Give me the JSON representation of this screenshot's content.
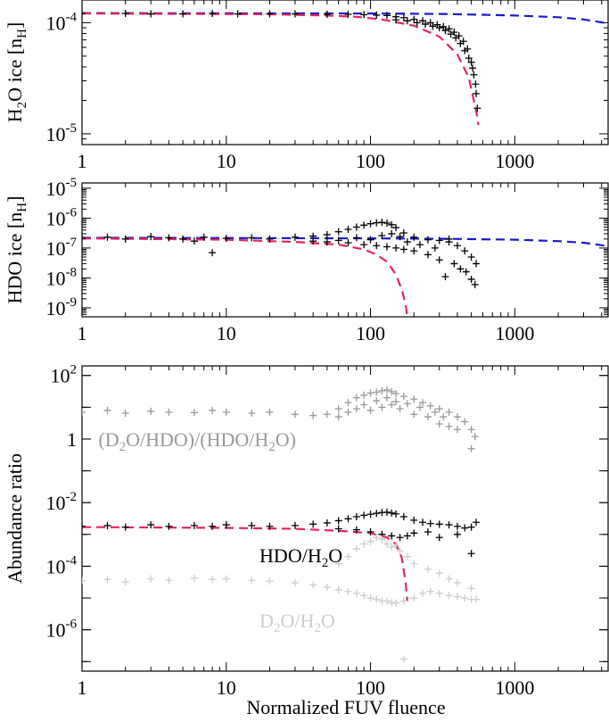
{
  "xlabel": "Normalized FUV fluence",
  "colors": {
    "model_red": "#e8245a",
    "model_blue": "#1a1ad4",
    "black": "#000000",
    "gray_dark": "#999999",
    "gray_light": "#cccccc"
  },
  "chart_data": [
    {
      "type": "scatter",
      "panel": "top",
      "ylabel": "H2O ice [nH]",
      "ylabel_parts": {
        "main": "H",
        "sub": "2",
        "rest": "O ice [n",
        "sub2": "H",
        "end": "]"
      },
      "xscale": "log",
      "yscale": "log",
      "xlim": [
        1,
        4500
      ],
      "ylim": [
        8e-06,
        0.00016
      ],
      "x_ticks": [
        {
          "v": 1,
          "l": "1"
        },
        {
          "v": 10,
          "l": "10"
        },
        {
          "v": 100,
          "l": "100"
        },
        {
          "v": 1000,
          "l": "1000"
        }
      ],
      "y_ticks": [
        {
          "v": 0.0001,
          "base": "10",
          "exp": "-4"
        },
        {
          "v": 1e-05,
          "base": "10",
          "exp": "-5"
        }
      ],
      "series": [
        {
          "kind": "model",
          "style": "dashed",
          "color": "#1a1ad4",
          "x": [
            1,
            100,
            300,
            600,
            1000,
            2000,
            3000,
            4500
          ],
          "y": [
            0.000122,
            0.000121,
            0.00012,
            0.000118,
            0.000116,
            0.000112,
            0.000107,
            9.8e-05
          ]
        },
        {
          "kind": "model",
          "style": "dashed",
          "color": "#e8245a",
          "x": [
            1,
            20,
            50,
            80,
            120,
            200,
            300,
            400,
            480,
            540,
            560
          ],
          "y": [
            0.000121,
            0.000119,
            0.000116,
            0.000113,
            0.000107,
            9.4e-05,
            7.5e-05,
            5.2e-05,
            3.2e-05,
            1.6e-05,
            1.2e-05
          ]
        },
        {
          "kind": "markers",
          "color": "#000000",
          "x": [
            1,
            2,
            3,
            5,
            8,
            12,
            20,
            30,
            50,
            70,
            90,
            110,
            130,
            150,
            170,
            200,
            230,
            260,
            290,
            320,
            350,
            380,
            410,
            440,
            470,
            500,
            520,
            540,
            550
          ],
          "y": [
            0.000121,
            0.000121,
            0.00012,
            0.00012,
            0.000121,
            0.00012,
            0.00012,
            0.00012,
            0.000119,
            0.000119,
            0.000118,
            0.000117,
            0.000116,
            0.000113,
            0.000111,
            0.000107,
            0.000104,
            0.0001,
            9.6e-05,
            9.2e-05,
            8.8e-05,
            8.2e-05,
            7.6e-05,
            6.8e-05,
            5.8e-05,
            4.4e-05,
            3.4e-05,
            2.3e-05,
            1.7e-05
          ]
        },
        {
          "kind": "markers",
          "color": "#000000",
          "x": [
            150,
            180,
            210,
            240,
            270,
            300,
            330,
            360,
            390,
            420,
            450,
            480,
            510,
            535
          ],
          "y": [
            0.000106,
            0.000104,
            0.0001,
            9.7e-05,
            9.3e-05,
            9e-05,
            8.5e-05,
            7.9e-05,
            7.3e-05,
            6.5e-05,
            5.6e-05,
            4.8e-05,
            3.9e-05,
            2.8e-05
          ]
        }
      ]
    },
    {
      "type": "scatter",
      "panel": "middle",
      "ylabel": "HDO ice [nH]",
      "ylabel_parts": {
        "main": "HDO ice [n",
        "sub": "H",
        "end": "]"
      },
      "xscale": "log",
      "yscale": "log",
      "xlim": [
        1,
        4500
      ],
      "ylim": [
        5e-10,
        1.5e-05
      ],
      "x_ticks": [
        {
          "v": 1,
          "l": "1"
        },
        {
          "v": 10,
          "l": "10"
        },
        {
          "v": 100,
          "l": "100"
        },
        {
          "v": 1000,
          "l": "1000"
        }
      ],
      "y_ticks": [
        {
          "v": 1e-05,
          "base": "10",
          "exp": "-5"
        },
        {
          "v": 1e-06,
          "base": "10",
          "exp": "-6"
        },
        {
          "v": 1e-07,
          "base": "10",
          "exp": "-7"
        },
        {
          "v": 1e-08,
          "base": "10",
          "exp": "-8"
        },
        {
          "v": 1e-09,
          "base": "10",
          "exp": "-9"
        }
      ],
      "series": [
        {
          "kind": "model",
          "style": "dashed",
          "color": "#1a1ad4",
          "x": [
            1,
            100,
            300,
            1000,
            2000,
            3000,
            4500
          ],
          "y": [
            2.2e-07,
            2.1e-07,
            2.05e-07,
            1.9e-07,
            1.7e-07,
            1.5e-07,
            1.15e-07
          ]
        },
        {
          "kind": "model",
          "style": "dashed",
          "color": "#e8245a",
          "x": [
            1,
            10,
            30,
            60,
            90,
            110,
            130,
            150,
            165,
            175,
            180
          ],
          "y": [
            2.1e-07,
            1.9e-07,
            1.6e-07,
            1.3e-07,
            9e-08,
            6e-08,
            3.5e-08,
            1.3e-08,
            4e-09,
            1.3e-09,
            5e-10
          ]
        },
        {
          "kind": "markers",
          "color": "#000000",
          "x": [
            1,
            1.5,
            2,
            3,
            4,
            5,
            7,
            10,
            15,
            20,
            30,
            40,
            50,
            60,
            70,
            80,
            90,
            100,
            110,
            120,
            130,
            140,
            150,
            170,
            200,
            250,
            300,
            350,
            400,
            450,
            500,
            540
          ],
          "y": [
            2.1e-07,
            2.3e-07,
            2e-07,
            2.4e-07,
            2.2e-07,
            2e-07,
            2.3e-07,
            2.1e-07,
            2.2e-07,
            2e-07,
            2.3e-07,
            2.5e-07,
            2.8e-07,
            3.5e-07,
            4.2e-07,
            5e-07,
            5.8e-07,
            6.5e-07,
            7e-07,
            7.2e-07,
            6.8e-07,
            6e-07,
            4.8e-07,
            3.2e-07,
            2.3e-07,
            1.9e-07,
            1.8e-07,
            2e-07,
            1.2e-07,
            8e-08,
            5e-08,
            3e-08
          ]
        },
        {
          "kind": "markers",
          "color": "#000000",
          "x": [
            40,
            50,
            60,
            70,
            80,
            90,
            100,
            110,
            120,
            130,
            140,
            150,
            160,
            170,
            180,
            200,
            220,
            250,
            280,
            300,
            330,
            350,
            380,
            420,
            460,
            500,
            530,
            8,
            6
          ],
          "y": [
            1.7e-07,
            1.6e-07,
            1.8e-07,
            1.5e-07,
            2.2e-07,
            1.3e-07,
            1.9e-07,
            1.2e-07,
            2.6e-07,
            1.1e-07,
            3e-07,
            1e-07,
            2.4e-07,
            9e-08,
            1.6e-07,
            8e-08,
            1.3e-07,
            6e-08,
            1e-07,
            4e-08,
            1.1e-08,
            1.6e-07,
            3e-08,
            2e-08,
            1.6e-08,
            9e-09,
            6e-09,
            7e-08,
            1.7e-07
          ]
        }
      ]
    },
    {
      "type": "scatter",
      "panel": "bottom",
      "ylabel": "Abundance ratio",
      "xscale": "log",
      "yscale": "log",
      "xlim": [
        1,
        4500
      ],
      "ylim": [
        5e-08,
        200
      ],
      "x_ticks": [
        {
          "v": 1,
          "l": "1"
        },
        {
          "v": 10,
          "l": "10"
        },
        {
          "v": 100,
          "l": "100"
        },
        {
          "v": 1000,
          "l": "1000"
        }
      ],
      "y_ticks": [
        {
          "v": 100,
          "base": "10",
          "exp": "2"
        },
        {
          "v": 1,
          "base": "1",
          "exp": ""
        },
        {
          "v": 0.01,
          "base": "10",
          "exp": "-2"
        },
        {
          "v": 0.0001,
          "base": "10",
          "exp": "-4"
        },
        {
          "v": 1e-06,
          "base": "10",
          "exp": "-6"
        }
      ],
      "annotations": [
        {
          "text_parts": [
            "(D",
            "2",
            "O/HDO)/(HDO/H",
            "2",
            "O)"
          ],
          "color": "#999999",
          "x": 1.3,
          "y": 1.0
        },
        {
          "text_parts": [
            "HDO/H",
            "2",
            "O"
          ],
          "color": "#000000",
          "x": 17,
          "y": 0.00022
        },
        {
          "text_parts": [
            "D",
            "2",
            "O/H",
            "2",
            "O"
          ],
          "color": "#cccccc",
          "x": 17,
          "y": 2e-06
        }
      ],
      "series": [
        {
          "kind": "markers",
          "color": "#999999",
          "x": [
            1,
            1.5,
            2,
            3,
            4,
            6,
            8,
            10,
            15,
            20,
            30,
            40,
            50,
            60,
            70,
            80,
            90,
            100,
            110,
            120,
            130,
            140,
            150,
            170,
            200,
            230,
            260,
            300,
            350,
            400,
            450,
            500,
            530
          ],
          "y": [
            7,
            8,
            6.5,
            7.5,
            7,
            6.8,
            8,
            7,
            6.5,
            7,
            6,
            5.5,
            6,
            9,
            14,
            20,
            24,
            28,
            30,
            33,
            35,
            31,
            27,
            22,
            18,
            14,
            11,
            9,
            7,
            5,
            3.5,
            2,
            1.2
          ]
        },
        {
          "kind": "markers",
          "color": "#999999",
          "x": [
            60,
            70,
            80,
            90,
            100,
            110,
            120,
            130,
            140,
            150,
            160,
            180,
            200,
            220,
            250,
            280,
            300,
            320,
            350,
            400,
            500
          ],
          "y": [
            5,
            7,
            9,
            12,
            8,
            16,
            10,
            20,
            12,
            15,
            9,
            13,
            6,
            10,
            5,
            7,
            3,
            5,
            2.5,
            2,
            0.5
          ]
        },
        {
          "kind": "model",
          "style": "dashed",
          "color": "#e8245a",
          "x": [
            1,
            10,
            30,
            60,
            100,
            130,
            150,
            165,
            175,
            180
          ],
          "y": [
            0.0017,
            0.0016,
            0.0015,
            0.0013,
            0.0011,
            0.0008,
            0.0005,
            0.00018,
            3e-05,
            8e-06
          ]
        },
        {
          "kind": "markers",
          "color": "#000000",
          "x": [
            1,
            1.5,
            2,
            3,
            4,
            6,
            8,
            10,
            15,
            20,
            30,
            40,
            50,
            60,
            70,
            80,
            90,
            100,
            110,
            120,
            130,
            140,
            150,
            170,
            200,
            230,
            260,
            300,
            350,
            400,
            450,
            500,
            540
          ],
          "y": [
            0.0018,
            0.0019,
            0.0017,
            0.002,
            0.0018,
            0.0019,
            0.0018,
            0.002,
            0.0019,
            0.0018,
            0.0019,
            0.0021,
            0.0023,
            0.0027,
            0.0031,
            0.0036,
            0.004,
            0.0043,
            0.0046,
            0.0049,
            0.005,
            0.0047,
            0.0044,
            0.0036,
            0.0028,
            0.0024,
            0.0022,
            0.0021,
            0.002,
            0.0018,
            0.0016,
            0.0017,
            0.0024
          ]
        },
        {
          "kind": "markers",
          "color": "#000000",
          "x": [
            60,
            80,
            100,
            120,
            140,
            160,
            180,
            200,
            250,
            300,
            400,
            500
          ],
          "y": [
            0.0015,
            0.0014,
            0.0012,
            0.001,
            0.0009,
            0.0008,
            0.0009,
            0.0011,
            0.0012,
            0.0008,
            0.001,
            0.00025
          ]
        },
        {
          "kind": "markers",
          "color": "#cccccc",
          "x": [
            1,
            1.5,
            2,
            3,
            4,
            6,
            8,
            10,
            15,
            20,
            30,
            40,
            50,
            60,
            70,
            80,
            90,
            100,
            110,
            120,
            130,
            140,
            150,
            170,
            200,
            230,
            260,
            300,
            350,
            400,
            450,
            500,
            540
          ],
          "y": [
            3.5e-05,
            3.8e-05,
            3.2e-05,
            4e-05,
            3.6e-05,
            4.2e-05,
            3.8e-05,
            4e-05,
            3.6e-05,
            3.4e-05,
            3e-05,
            2.6e-05,
            2.2e-05,
            1.8e-05,
            1.6e-05,
            1.4e-05,
            1.2e-05,
            1e-05,
            9e-06,
            8e-06,
            8e-06,
            7e-06,
            7e-06,
            8e-06,
            1e-05,
            1.4e-05,
            1.6e-05,
            1.4e-05,
            1.2e-05,
            1.1e-05,
            1e-05,
            9e-06,
            9e-06
          ]
        },
        {
          "kind": "markers",
          "color": "#cccccc",
          "x": [
            60,
            70,
            80,
            90,
            100,
            110,
            120,
            130,
            140,
            150,
            160,
            180,
            200,
            250,
            300,
            350,
            400,
            500,
            170
          ],
          "y": [
            0.00012,
            0.0002,
            0.00035,
            0.0005,
            0.0006,
            0.0008,
            0.0007,
            0.0005,
            0.0004,
            0.00045,
            0.0003,
            0.0002,
            0.00012,
            8e-05,
            6e-05,
            4e-05,
            3e-05,
            2e-05,
            1.2e-07
          ]
        }
      ]
    }
  ]
}
